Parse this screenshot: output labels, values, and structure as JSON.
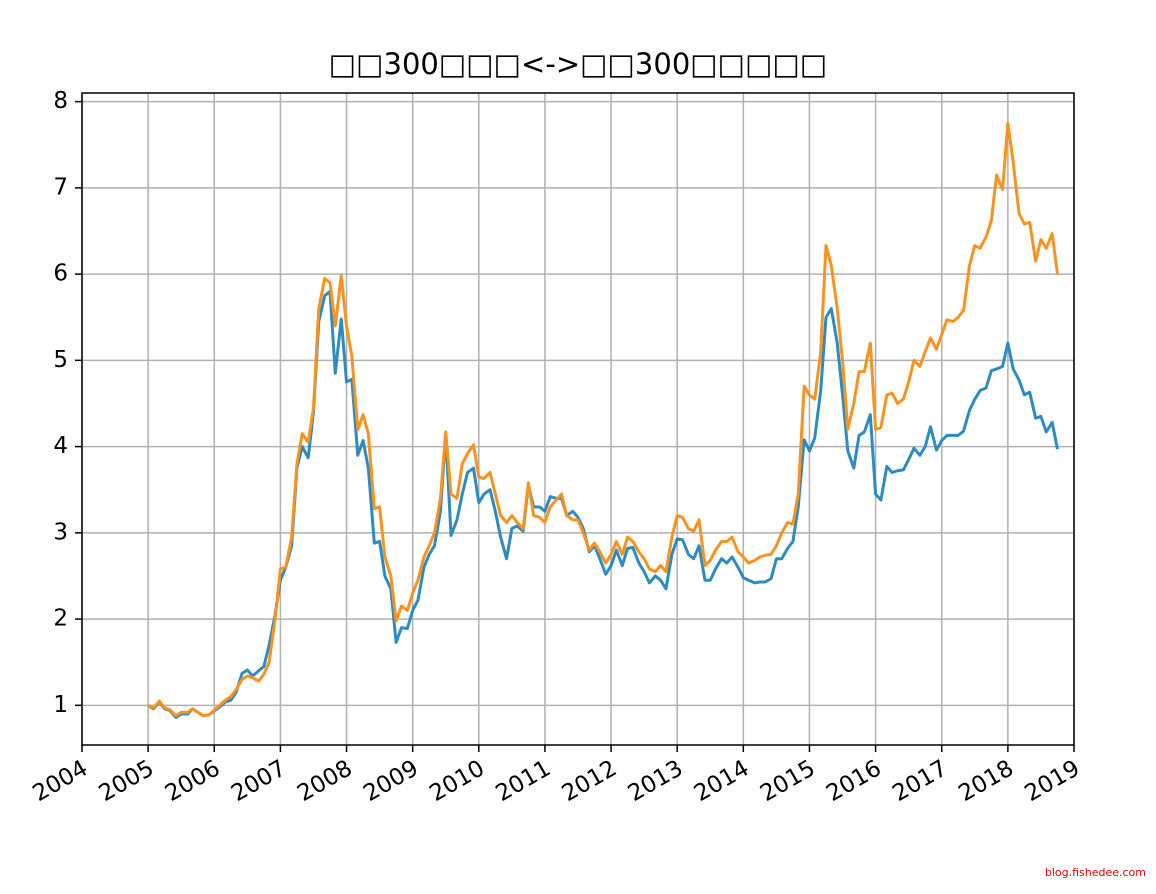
{
  "chart_data": {
    "type": "line",
    "title": "□□300□□□<->□□300□□□□□",
    "watermark": "blog.fishedee.com",
    "xlim": [
      2004,
      2019
    ],
    "xticks": [
      2004,
      2005,
      2006,
      2007,
      2008,
      2009,
      2010,
      2011,
      2012,
      2013,
      2014,
      2015,
      2016,
      2017,
      2018,
      2019
    ],
    "ylim": [
      0.54,
      8.1
    ],
    "yticks": [
      1,
      2,
      3,
      4,
      5,
      6,
      7,
      8
    ],
    "grid": true,
    "x": [
      2005.0,
      2005.08,
      2005.17,
      2005.25,
      2005.33,
      2005.42,
      2005.5,
      2005.6,
      2005.67,
      2005.83,
      2005.92,
      2006.08,
      2006.17,
      2006.25,
      2006.33,
      2006.42,
      2006.5,
      2006.58,
      2006.67,
      2006.75,
      2006.83,
      2006.92,
      2007.0,
      2007.08,
      2007.17,
      2007.25,
      2007.33,
      2007.42,
      2007.5,
      2007.58,
      2007.67,
      2007.75,
      2007.83,
      2007.92,
      2008.0,
      2008.08,
      2008.17,
      2008.25,
      2008.33,
      2008.42,
      2008.5,
      2008.58,
      2008.67,
      2008.75,
      2008.83,
      2008.92,
      2009.0,
      2009.08,
      2009.17,
      2009.25,
      2009.33,
      2009.42,
      2009.5,
      2009.58,
      2009.67,
      2009.75,
      2009.83,
      2009.92,
      2010.0,
      2010.08,
      2010.17,
      2010.25,
      2010.33,
      2010.42,
      2010.5,
      2010.58,
      2010.67,
      2010.75,
      2010.83,
      2010.92,
      2011.0,
      2011.08,
      2011.17,
      2011.25,
      2011.33,
      2011.42,
      2011.5,
      2011.58,
      2011.67,
      2011.75,
      2011.83,
      2011.92,
      2012.0,
      2012.08,
      2012.17,
      2012.25,
      2012.33,
      2012.42,
      2012.5,
      2012.58,
      2012.67,
      2012.75,
      2012.83,
      2012.92,
      2013.0,
      2013.08,
      2013.17,
      2013.25,
      2013.33,
      2013.42,
      2013.5,
      2013.58,
      2013.67,
      2013.75,
      2013.83,
      2013.92,
      2014.0,
      2014.08,
      2014.17,
      2014.25,
      2014.33,
      2014.42,
      2014.5,
      2014.58,
      2014.67,
      2014.75,
      2014.83,
      2014.92,
      2015.0,
      2015.08,
      2015.17,
      2015.25,
      2015.33,
      2015.42,
      2015.5,
      2015.58,
      2015.67,
      2015.75,
      2015.83,
      2015.92,
      2016.0,
      2016.08,
      2016.17,
      2016.25,
      2016.33,
      2016.42,
      2016.5,
      2016.58,
      2016.67,
      2016.75,
      2016.83,
      2016.92,
      2017.0,
      2017.08,
      2017.17,
      2017.25,
      2017.33,
      2017.42,
      2017.5,
      2017.58,
      2017.67,
      2017.75,
      2017.83,
      2017.92,
      2018.0,
      2018.08,
      2018.17,
      2018.25,
      2018.33,
      2018.42,
      2018.5,
      2018.58,
      2018.67,
      2018.75
    ],
    "series": [
      {
        "color": "#2e8bc0",
        "values": [
          1.0,
          0.96,
          1.04,
          0.96,
          0.94,
          0.86,
          0.9,
          0.9,
          0.96,
          0.88,
          0.89,
          0.98,
          1.04,
          1.06,
          1.15,
          1.37,
          1.41,
          1.34,
          1.4,
          1.45,
          1.7,
          2.05,
          2.45,
          2.6,
          2.85,
          3.75,
          4.0,
          3.87,
          4.4,
          5.45,
          5.75,
          5.8,
          4.85,
          5.48,
          4.75,
          4.78,
          3.9,
          4.07,
          3.75,
          2.88,
          2.9,
          2.5,
          2.35,
          1.73,
          1.9,
          1.89,
          2.1,
          2.22,
          2.6,
          2.75,
          2.85,
          3.25,
          4.15,
          2.97,
          3.15,
          3.45,
          3.7,
          3.75,
          3.35,
          3.45,
          3.5,
          3.25,
          2.95,
          2.7,
          3.05,
          3.08,
          3.02,
          3.55,
          3.3,
          3.3,
          3.25,
          3.42,
          3.4,
          3.4,
          3.2,
          3.25,
          3.18,
          3.05,
          2.78,
          2.85,
          2.7,
          2.52,
          2.62,
          2.8,
          2.62,
          2.82,
          2.83,
          2.65,
          2.55,
          2.42,
          2.5,
          2.45,
          2.35,
          2.75,
          2.93,
          2.92,
          2.75,
          2.7,
          2.85,
          2.45,
          2.45,
          2.58,
          2.7,
          2.65,
          2.72,
          2.6,
          2.48,
          2.45,
          2.42,
          2.43,
          2.43,
          2.47,
          2.7,
          2.7,
          2.82,
          2.9,
          3.3,
          4.08,
          3.95,
          4.1,
          4.65,
          5.5,
          5.6,
          5.2,
          4.6,
          3.95,
          3.75,
          4.13,
          4.17,
          4.37,
          3.45,
          3.38,
          3.77,
          3.7,
          3.72,
          3.73,
          3.85,
          3.98,
          3.9,
          4.0,
          4.23,
          3.96,
          4.07,
          4.13,
          4.13,
          4.13,
          4.18,
          4.42,
          4.55,
          4.65,
          4.68,
          4.88,
          4.9,
          4.93,
          5.2,
          4.9,
          4.77,
          4.6,
          4.63,
          4.33,
          4.35,
          4.17,
          4.28,
          3.97
        ]
      },
      {
        "color": "#f7931e",
        "values": [
          1.0,
          0.97,
          1.05,
          0.97,
          0.95,
          0.88,
          0.92,
          0.92,
          0.96,
          0.88,
          0.89,
          1.0,
          1.06,
          1.1,
          1.18,
          1.3,
          1.34,
          1.32,
          1.28,
          1.36,
          1.5,
          2.0,
          2.58,
          2.6,
          2.95,
          3.8,
          4.15,
          4.05,
          4.45,
          5.6,
          5.95,
          5.9,
          5.4,
          5.98,
          5.4,
          5.05,
          4.2,
          4.37,
          4.15,
          3.28,
          3.3,
          2.72,
          2.5,
          1.98,
          2.15,
          2.1,
          2.3,
          2.45,
          2.72,
          2.85,
          3.0,
          3.4,
          4.17,
          3.45,
          3.4,
          3.8,
          3.92,
          4.02,
          3.65,
          3.63,
          3.7,
          3.45,
          3.2,
          3.12,
          3.2,
          3.12,
          3.05,
          3.58,
          3.2,
          3.18,
          3.12,
          3.3,
          3.38,
          3.45,
          3.2,
          3.15,
          3.15,
          3.0,
          2.8,
          2.88,
          2.78,
          2.65,
          2.75,
          2.9,
          2.75,
          2.95,
          2.9,
          2.78,
          2.7,
          2.58,
          2.55,
          2.62,
          2.55,
          2.95,
          3.2,
          3.18,
          3.05,
          3.02,
          3.15,
          2.62,
          2.68,
          2.8,
          2.9,
          2.9,
          2.95,
          2.78,
          2.72,
          2.65,
          2.68,
          2.72,
          2.74,
          2.75,
          2.85,
          3.0,
          3.12,
          3.1,
          3.45,
          4.7,
          4.6,
          4.55,
          5.1,
          6.33,
          6.1,
          5.6,
          5.0,
          4.2,
          4.5,
          4.87,
          4.87,
          5.2,
          4.2,
          4.22,
          4.6,
          4.62,
          4.5,
          4.55,
          4.75,
          5.0,
          4.93,
          5.1,
          5.26,
          5.13,
          5.3,
          5.47,
          5.45,
          5.5,
          5.58,
          6.1,
          6.33,
          6.3,
          6.43,
          6.62,
          7.15,
          6.98,
          7.75,
          7.3,
          6.7,
          6.58,
          6.6,
          6.15,
          6.4,
          6.3,
          6.47,
          6.0
        ]
      }
    ]
  }
}
